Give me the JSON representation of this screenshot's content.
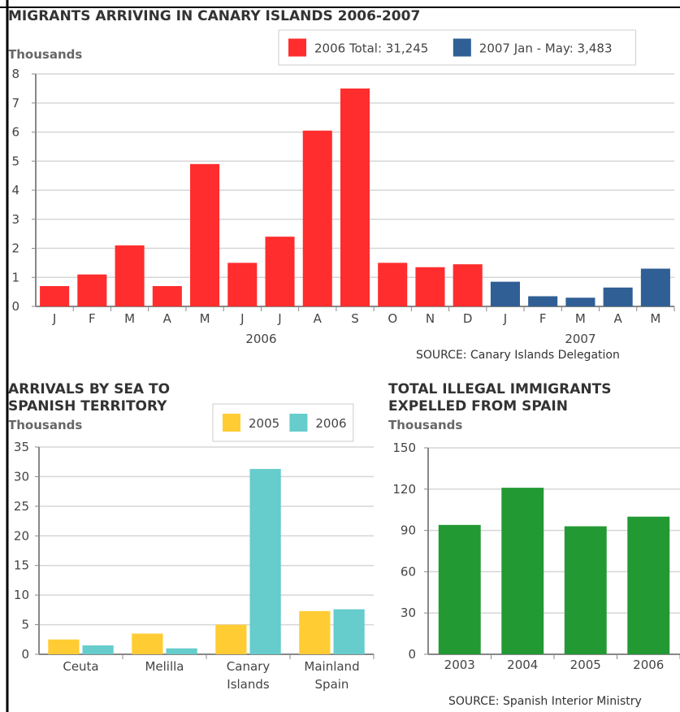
{
  "chart_data": [
    {
      "type": "bar",
      "title": "MIGRANTS ARRIVING IN CANARY ISLANDS 2006-2007",
      "y_label": "Thousands",
      "categories": [
        "J",
        "F",
        "M",
        "A",
        "M",
        "J",
        "J",
        "A",
        "S",
        "O",
        "N",
        "D",
        "J",
        "F",
        "M",
        "A",
        "M"
      ],
      "group_labels": [
        "2006",
        "2007"
      ],
      "series": [
        {
          "name": "2006 Total: 31,245",
          "color": "#ff2d2d",
          "values": [
            0.7,
            1.1,
            2.1,
            0.7,
            4.9,
            1.5,
            2.4,
            6.05,
            7.5,
            1.5,
            1.35,
            1.45,
            null,
            null,
            null,
            null,
            null
          ]
        },
        {
          "name": "2007 Jan - May: 3,483",
          "color": "#2f5f94",
          "values": [
            null,
            null,
            null,
            null,
            null,
            null,
            null,
            null,
            null,
            null,
            null,
            null,
            0.85,
            0.35,
            0.3,
            0.65,
            1.3
          ]
        }
      ],
      "ylim": [
        0,
        8
      ],
      "yticks": [
        0,
        1,
        2,
        3,
        4,
        5,
        6,
        7,
        8
      ],
      "grid": true,
      "legend": "upper right",
      "source": "SOURCE: Canary Islands Delegation"
    },
    {
      "type": "bar",
      "title": "ARRIVALS BY SEA TO SPANISH TERRITORY",
      "y_label": "Thousands",
      "categories": [
        "Ceuta",
        "Melilla",
        "Canary Islands",
        "Mainland Spain"
      ],
      "series": [
        {
          "name": "2005",
          "color": "#ffcc33",
          "values": [
            2.5,
            3.5,
            5,
            7.3
          ]
        },
        {
          "name": "2006",
          "color": "#66cccc",
          "values": [
            1.5,
            1,
            31.3,
            7.6
          ]
        }
      ],
      "ylim": [
        0,
        35
      ],
      "yticks": [
        0,
        5,
        10,
        15,
        20,
        25,
        30,
        35
      ],
      "grid": true,
      "legend": "upper right"
    },
    {
      "type": "bar",
      "title": "TOTAL ILLEGAL IMMIGRANTS EXPELLED FROM SPAIN",
      "y_label": "Thousands",
      "categories": [
        "2003",
        "2004",
        "2005",
        "2006"
      ],
      "series": [
        {
          "color": "#229933",
          "values": [
            94,
            121,
            93,
            100
          ]
        }
      ],
      "ylim": [
        0,
        150
      ],
      "yticks": [
        0,
        30,
        60,
        90,
        120,
        150
      ],
      "grid": true,
      "source": "SOURCE: Spanish Interior Ministry"
    }
  ]
}
